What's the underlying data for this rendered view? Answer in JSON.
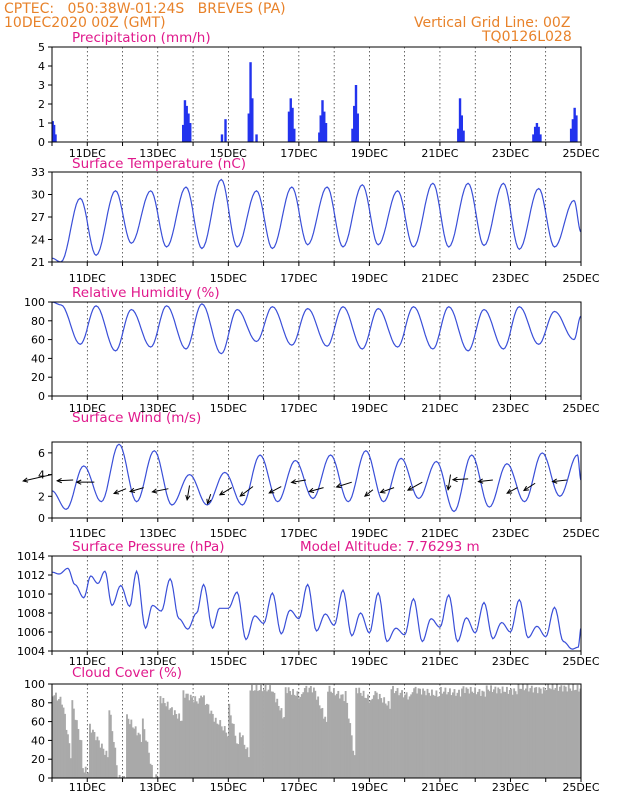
{
  "header": {
    "line1_left": "CPTEC:   050:38W-01:24S   BREVES (PA)",
    "line2_left": "10DEC2020 00Z (GMT)",
    "line1_right": "Vertical Grid Line: 00Z",
    "line2_right": "TQ0126L028",
    "model_altitude": "Model Altitude: 7.76293 m"
  },
  "colors": {
    "header": "#e8822a",
    "title": "#e0198c",
    "line": "#3a4fd8",
    "bar": "#2233ee",
    "cloud": "#a9a9a9",
    "arrow": "#000000"
  },
  "chart_data": [
    {
      "type": "bar",
      "title": "Precipitation (mm/h)",
      "ylim": [
        0,
        5
      ],
      "yticks": [
        "0",
        "1",
        "2",
        "3",
        "4",
        "5"
      ],
      "xlabels": [
        "11DEC",
        "13DEC",
        "15DEC",
        "17DEC",
        "19DEC",
        "21DEC",
        "23DEC",
        "25DEC"
      ],
      "x_range_days": [
        10,
        25
      ],
      "bars": [
        {
          "t": 10.02,
          "v": 1.1
        },
        {
          "t": 10.06,
          "v": 0.9
        },
        {
          "t": 10.1,
          "v": 0.4
        },
        {
          "t": 13.72,
          "v": 0.9
        },
        {
          "t": 13.77,
          "v": 2.2
        },
        {
          "t": 13.82,
          "v": 1.9
        },
        {
          "t": 13.87,
          "v": 1.5
        },
        {
          "t": 13.92,
          "v": 1.0
        },
        {
          "t": 14.82,
          "v": 0.4
        },
        {
          "t": 14.92,
          "v": 1.2
        },
        {
          "t": 15.58,
          "v": 1.5
        },
        {
          "t": 15.63,
          "v": 4.2
        },
        {
          "t": 15.68,
          "v": 2.3
        },
        {
          "t": 15.8,
          "v": 0.4
        },
        {
          "t": 16.72,
          "v": 1.6
        },
        {
          "t": 16.77,
          "v": 2.3
        },
        {
          "t": 16.82,
          "v": 1.8
        },
        {
          "t": 16.87,
          "v": 0.7
        },
        {
          "t": 17.58,
          "v": 0.5
        },
        {
          "t": 17.62,
          "v": 1.4
        },
        {
          "t": 17.67,
          "v": 2.2
        },
        {
          "t": 17.72,
          "v": 1.6
        },
        {
          "t": 17.77,
          "v": 1.0
        },
        {
          "t": 18.52,
          "v": 0.7
        },
        {
          "t": 18.57,
          "v": 1.9
        },
        {
          "t": 18.62,
          "v": 3.0
        },
        {
          "t": 18.67,
          "v": 1.5
        },
        {
          "t": 21.52,
          "v": 0.7
        },
        {
          "t": 21.57,
          "v": 2.3
        },
        {
          "t": 21.62,
          "v": 1.4
        },
        {
          "t": 21.67,
          "v": 0.6
        },
        {
          "t": 23.65,
          "v": 0.4
        },
        {
          "t": 23.7,
          "v": 0.8
        },
        {
          "t": 23.75,
          "v": 1.0
        },
        {
          "t": 23.8,
          "v": 0.8
        },
        {
          "t": 23.85,
          "v": 0.4
        },
        {
          "t": 24.72,
          "v": 0.7
        },
        {
          "t": 24.77,
          "v": 1.2
        },
        {
          "t": 24.82,
          "v": 1.8
        },
        {
          "t": 24.87,
          "v": 1.4
        }
      ]
    },
    {
      "type": "line",
      "title": "Surface Temperature (nC)",
      "ylim": [
        21,
        33
      ],
      "yticks": [
        "21",
        "24",
        "27",
        "30",
        "33"
      ],
      "xlabels": [
        "11DEC",
        "13DEC",
        "15DEC",
        "17DEC",
        "19DEC",
        "21DEC",
        "23DEC",
        "25DEC"
      ],
      "x_range_days": [
        10,
        25
      ],
      "min_t": [
        10.25,
        11.25,
        12.25,
        13.25,
        14.25,
        15.25,
        16.25,
        17.25,
        18.25,
        19.25,
        20.25,
        21.25,
        22.25,
        23.25,
        24.25
      ],
      "min_v": [
        21.0,
        21.9,
        23.5,
        23.0,
        22.8,
        23.0,
        22.8,
        23.3,
        23.0,
        23.3,
        23.0,
        23.0,
        23.2,
        22.7,
        23.0
      ],
      "max_t": [
        10.8,
        11.8,
        12.8,
        13.8,
        14.8,
        15.8,
        16.8,
        17.8,
        18.8,
        19.8,
        20.8,
        21.8,
        22.8,
        23.8,
        24.8
      ],
      "max_v": [
        29.5,
        30.5,
        30.5,
        31.0,
        32.0,
        30.5,
        31.0,
        31.0,
        31.3,
        30.5,
        31.5,
        31.5,
        31.5,
        30.8,
        29.2
      ],
      "start": {
        "t": 10.0,
        "v": 21.5
      },
      "end": {
        "t": 25.0,
        "v": 25.0
      }
    },
    {
      "type": "line",
      "title": "Relative Humidity (%)",
      "ylim": [
        0,
        100
      ],
      "yticks": [
        "0",
        "20",
        "40",
        "60",
        "80",
        "100"
      ],
      "xlabels": [
        "11DEC",
        "13DEC",
        "15DEC",
        "17DEC",
        "19DEC",
        "21DEC",
        "23DEC",
        "25DEC"
      ],
      "x_range_days": [
        10,
        25
      ],
      "min_t": [
        10.8,
        11.8,
        12.8,
        13.8,
        14.8,
        15.8,
        16.8,
        17.8,
        18.8,
        19.8,
        20.8,
        21.8,
        22.8,
        23.8,
        24.8
      ],
      "min_v": [
        55,
        48,
        52,
        50,
        45,
        58,
        54,
        53,
        50,
        52,
        50,
        48,
        50,
        55,
        60
      ],
      "max_t": [
        10.25,
        11.25,
        12.25,
        13.25,
        14.25,
        15.25,
        16.25,
        17.25,
        18.25,
        19.25,
        20.25,
        21.25,
        22.25,
        23.25,
        24.25
      ],
      "max_v": [
        97,
        96,
        92,
        96,
        98,
        92,
        95,
        93,
        95,
        93,
        95,
        95,
        92,
        95,
        90
      ],
      "start": {
        "t": 10.0,
        "v": 100
      },
      "end": {
        "t": 25.0,
        "v": 85
      }
    },
    {
      "type": "line",
      "title": "Surface Wind (m/s)",
      "ylim": [
        0,
        7
      ],
      "yticks": [
        "0",
        "2",
        "4",
        "6"
      ],
      "xlabels": [
        "11DEC",
        "13DEC",
        "15DEC",
        "17DEC",
        "19DEC",
        "21DEC",
        "23DEC",
        "25DEC"
      ],
      "x_range_days": [
        10,
        25
      ],
      "min_t": [
        10.4,
        11.4,
        12.4,
        13.4,
        14.4,
        15.4,
        16.4,
        17.4,
        18.4,
        19.4,
        20.4,
        21.4,
        22.4,
        23.4,
        24.4
      ],
      "min_v": [
        0.8,
        1.5,
        1.5,
        1.2,
        1.2,
        1.2,
        1.5,
        1.8,
        1.5,
        1.5,
        1.8,
        0.6,
        1.0,
        1.5,
        2.0
      ],
      "max_t": [
        10.9,
        11.9,
        12.9,
        13.9,
        14.9,
        15.9,
        16.9,
        17.9,
        18.9,
        19.9,
        20.9,
        21.9,
        22.9,
        23.9,
        24.9
      ],
      "max_v": [
        4.8,
        6.8,
        6.2,
        4.0,
        4.2,
        5.8,
        5.3,
        5.8,
        6.2,
        5.5,
        5.2,
        5.8,
        5.0,
        6.0,
        5.8
      ],
      "start": {
        "t": 10.0,
        "v": 2.5
      },
      "end": {
        "t": 25.0,
        "v": 3.5
      },
      "wind_vectors": [
        {
          "t": 10.0,
          "v": 4.0,
          "u": -3.6,
          "w": -0.8
        },
        {
          "t": 10.6,
          "v": 3.5,
          "u": -2.0,
          "w": -0.1
        },
        {
          "t": 11.2,
          "v": 3.3,
          "u": -2.2,
          "w": 0.0
        },
        {
          "t": 12.1,
          "v": 2.7,
          "u": -1.5,
          "w": -0.6
        },
        {
          "t": 12.6,
          "v": 2.8,
          "u": -1.7,
          "w": -0.5
        },
        {
          "t": 13.3,
          "v": 2.7,
          "u": -2.0,
          "w": -0.4
        },
        {
          "t": 13.9,
          "v": 3.0,
          "u": -0.3,
          "w": -1.8
        },
        {
          "t": 14.5,
          "v": 2.2,
          "u": -0.4,
          "w": -1.2
        },
        {
          "t": 15.1,
          "v": 2.8,
          "u": -1.5,
          "w": -0.9
        },
        {
          "t": 15.7,
          "v": 2.9,
          "u": -1.6,
          "w": -1.2
        },
        {
          "t": 16.5,
          "v": 2.9,
          "u": -1.5,
          "w": -0.8
        },
        {
          "t": 17.2,
          "v": 3.5,
          "u": -1.8,
          "w": -0.3
        },
        {
          "t": 17.7,
          "v": 2.8,
          "u": -1.8,
          "w": -0.5
        },
        {
          "t": 18.5,
          "v": 3.3,
          "u": -1.9,
          "w": -0.6
        },
        {
          "t": 19.1,
          "v": 2.6,
          "u": -1.0,
          "w": -0.8
        },
        {
          "t": 19.7,
          "v": 2.8,
          "u": -1.7,
          "w": -0.6
        },
        {
          "t": 20.5,
          "v": 3.3,
          "u": -1.8,
          "w": -1.0
        },
        {
          "t": 21.3,
          "v": 4.0,
          "u": -0.3,
          "w": -1.9
        },
        {
          "t": 21.8,
          "v": 3.6,
          "u": -1.9,
          "w": -0.1
        },
        {
          "t": 22.5,
          "v": 3.5,
          "u": -1.8,
          "w": -0.2
        },
        {
          "t": 23.2,
          "v": 2.8,
          "u": -1.3,
          "w": -0.7
        },
        {
          "t": 23.7,
          "v": 3.2,
          "u": -1.4,
          "w": -0.9
        },
        {
          "t": 24.6,
          "v": 3.5,
          "u": -1.8,
          "w": -0.2
        }
      ]
    },
    {
      "type": "line",
      "title": "Surface Pressure (hPa)",
      "ylim": [
        1004,
        1014
      ],
      "yticks": [
        "1004",
        "1006",
        "1008",
        "1010",
        "1012",
        "1014"
      ],
      "xlabels": [
        "11DEC",
        "13DEC",
        "15DEC",
        "17DEC",
        "19DEC",
        "21DEC",
        "23DEC",
        "25DEC"
      ],
      "x_range_days": [
        10,
        25
      ],
      "points": [
        [
          10.0,
          1012.3
        ],
        [
          10.2,
          1012.1
        ],
        [
          10.45,
          1012.7
        ],
        [
          10.65,
          1011.0
        ],
        [
          10.9,
          1009.6
        ],
        [
          11.1,
          1011.9
        ],
        [
          11.3,
          1011.1
        ],
        [
          11.5,
          1012.4
        ],
        [
          11.7,
          1008.8
        ],
        [
          11.95,
          1010.9
        ],
        [
          12.2,
          1008.7
        ],
        [
          12.4,
          1012.4
        ],
        [
          12.65,
          1006.4
        ],
        [
          12.85,
          1008.8
        ],
        [
          13.1,
          1008.2
        ],
        [
          13.35,
          1011.6
        ],
        [
          13.6,
          1007.4
        ],
        [
          13.85,
          1006.3
        ],
        [
          14.1,
          1008.0
        ],
        [
          14.3,
          1011.0
        ],
        [
          14.55,
          1006.4
        ],
        [
          14.75,
          1008.5
        ],
        [
          15.0,
          1008.5
        ],
        [
          15.25,
          1010.2
        ],
        [
          15.5,
          1005.2
        ],
        [
          15.75,
          1007.7
        ],
        [
          16.0,
          1006.9
        ],
        [
          16.25,
          1010.1
        ],
        [
          16.5,
          1005.8
        ],
        [
          16.75,
          1008.3
        ],
        [
          17.0,
          1007.4
        ],
        [
          17.25,
          1011.0
        ],
        [
          17.5,
          1006.1
        ],
        [
          17.75,
          1007.9
        ],
        [
          18.0,
          1006.7
        ],
        [
          18.25,
          1010.4
        ],
        [
          18.5,
          1005.6
        ],
        [
          18.75,
          1008.0
        ],
        [
          19.0,
          1005.9
        ],
        [
          19.25,
          1010.1
        ],
        [
          19.5,
          1005.0
        ],
        [
          19.75,
          1006.4
        ],
        [
          20.0,
          1005.7
        ],
        [
          20.25,
          1009.5
        ],
        [
          20.5,
          1005.0
        ],
        [
          20.75,
          1007.4
        ],
        [
          21.0,
          1006.5
        ],
        [
          21.25,
          1009.9
        ],
        [
          21.5,
          1005.0
        ],
        [
          21.75,
          1007.5
        ],
        [
          22.0,
          1005.9
        ],
        [
          22.25,
          1009.1
        ],
        [
          22.5,
          1005.3
        ],
        [
          22.75,
          1007.0
        ],
        [
          23.0,
          1006.0
        ],
        [
          23.25,
          1009.4
        ],
        [
          23.5,
          1005.4
        ],
        [
          23.75,
          1006.6
        ],
        [
          24.0,
          1005.5
        ],
        [
          24.25,
          1008.6
        ],
        [
          24.5,
          1005.0
        ],
        [
          24.75,
          1004.2
        ],
        [
          24.92,
          1004.4
        ],
        [
          25.0,
          1006.4
        ]
      ]
    },
    {
      "type": "bar",
      "title": "Cloud Cover (%)",
      "ylim": [
        0,
        100
      ],
      "yticks": [
        "0",
        "20",
        "40",
        "60",
        "80",
        "100"
      ],
      "xlabels": [
        "11DEC",
        "13DEC",
        "15DEC",
        "17DEC",
        "19DEC",
        "21DEC",
        "23DEC",
        "25DEC"
      ],
      "x_range_days": [
        10,
        25
      ],
      "segments": [
        {
          "t0": 10.0,
          "t1": 10.3,
          "v0": 90,
          "v1": 80
        },
        {
          "t0": 10.3,
          "t1": 10.55,
          "v0": 75,
          "v1": 15
        },
        {
          "t0": 10.55,
          "t1": 10.85,
          "v0": 80,
          "v1": 30
        },
        {
          "t0": 10.85,
          "t1": 11.05,
          "v0": 10,
          "v1": 5
        },
        {
          "t0": 11.05,
          "t1": 11.6,
          "v0": 55,
          "v1": 20
        },
        {
          "t0": 11.6,
          "t1": 11.85,
          "v0": 75,
          "v1": 5
        },
        {
          "t0": 11.85,
          "t1": 12.1,
          "v0": 0,
          "v1": 0
        },
        {
          "t0": 12.1,
          "t1": 12.55,
          "v0": 65,
          "v1": 40
        },
        {
          "t0": 12.55,
          "t1": 12.85,
          "v0": 60,
          "v1": 2
        },
        {
          "t0": 12.85,
          "t1": 13.05,
          "v0": 0,
          "v1": 0
        },
        {
          "t0": 13.05,
          "t1": 13.7,
          "v0": 85,
          "v1": 60
        },
        {
          "t0": 13.7,
          "t1": 14.2,
          "v0": 90,
          "v1": 80
        },
        {
          "t0": 14.2,
          "t1": 14.7,
          "v0": 90,
          "v1": 55
        },
        {
          "t0": 14.7,
          "t1": 15.0,
          "v0": 60,
          "v1": 45
        },
        {
          "t0": 15.0,
          "t1": 15.3,
          "v0": 75,
          "v1": 25
        },
        {
          "t0": 15.3,
          "t1": 15.6,
          "v0": 50,
          "v1": 20
        },
        {
          "t0": 15.6,
          "t1": 16.2,
          "v0": 95,
          "v1": 95
        },
        {
          "t0": 16.2,
          "t1": 16.6,
          "v0": 95,
          "v1": 60
        },
        {
          "t0": 16.6,
          "t1": 17.1,
          "v0": 95,
          "v1": 85
        },
        {
          "t0": 17.1,
          "t1": 17.4,
          "v0": 95,
          "v1": 95
        },
        {
          "t0": 17.4,
          "t1": 17.8,
          "v0": 95,
          "v1": 55
        },
        {
          "t0": 17.8,
          "t1": 18.3,
          "v0": 95,
          "v1": 85
        },
        {
          "t0": 18.3,
          "t1": 18.6,
          "v0": 90,
          "v1": 10
        },
        {
          "t0": 18.6,
          "t1": 19.1,
          "v0": 95,
          "v1": 80
        },
        {
          "t0": 19.1,
          "t1": 19.6,
          "v0": 92,
          "v1": 75
        },
        {
          "t0": 19.6,
          "t1": 20.2,
          "v0": 95,
          "v1": 85
        },
        {
          "t0": 20.2,
          "t1": 21.0,
          "v0": 95,
          "v1": 88
        },
        {
          "t0": 21.0,
          "t1": 21.6,
          "v0": 93,
          "v1": 90
        },
        {
          "t0": 21.6,
          "t1": 22.3,
          "v0": 95,
          "v1": 90
        },
        {
          "t0": 22.3,
          "t1": 23.2,
          "v0": 95,
          "v1": 92
        },
        {
          "t0": 23.2,
          "t1": 24.0,
          "v0": 97,
          "v1": 93
        },
        {
          "t0": 24.0,
          "t1": 25.0,
          "v0": 97,
          "v1": 95
        }
      ]
    }
  ]
}
